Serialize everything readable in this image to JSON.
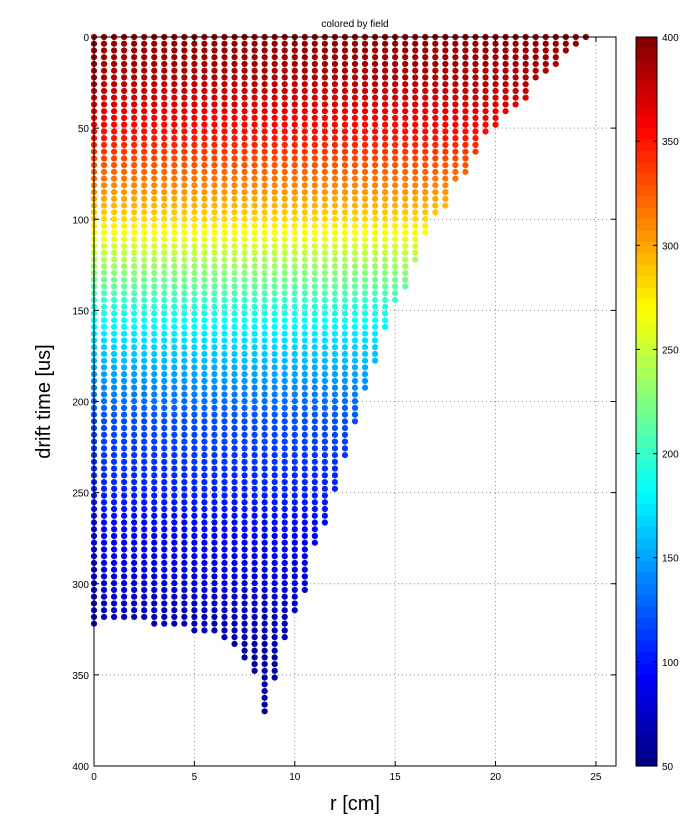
{
  "chart_data": {
    "type": "scatter",
    "title": "colored by field",
    "xlabel": "r [cm]",
    "ylabel": "drift time [us]",
    "xlim": [
      0,
      26
    ],
    "ylim": [
      0,
      400
    ],
    "y_reversed": true,
    "grid": true,
    "x_ticks": [
      0,
      5,
      10,
      15,
      20,
      25
    ],
    "y_ticks": [
      0,
      50,
      100,
      150,
      200,
      250,
      300,
      350,
      400
    ],
    "colorbar": {
      "colormap": "jet",
      "range": [
        50,
        400
      ],
      "ticks": [
        50,
        100,
        150,
        200,
        250,
        300,
        350,
        400
      ],
      "placement": "right"
    },
    "color_variable": "field",
    "columns": {
      "x": [
        0.0,
        0.5,
        1.0,
        1.5,
        2.0,
        2.5,
        3.0,
        3.5,
        4.0,
        4.5,
        5.0,
        5.5,
        6.0,
        6.5,
        7.0,
        7.5,
        8.0,
        8.5,
        9.0,
        9.5,
        10.0,
        10.5,
        11.0,
        11.5,
        12.0,
        12.5,
        13.0,
        13.5,
        14.0,
        14.5,
        15.0,
        15.5,
        16.0,
        16.5,
        17.0,
        17.5,
        18.0,
        18.5,
        19.0,
        19.5,
        20.0,
        20.5,
        21.0,
        21.5,
        22.0,
        22.5,
        23.0,
        23.5,
        24.0,
        24.5
      ],
      "y_max": [
        323,
        320,
        320,
        320,
        321,
        321,
        322,
        323,
        324,
        325,
        326,
        327,
        329,
        331,
        336,
        342,
        349,
        373,
        352,
        330,
        315,
        307,
        279,
        268,
        249,
        231,
        213,
        196,
        179,
        162,
        145,
        138,
        124,
        110,
        98,
        94,
        81,
        74,
        64,
        53,
        49,
        44,
        39,
        35,
        23,
        20,
        16,
        11,
        7,
        2
      ]
    },
    "points_per_column_spacing": 3.7,
    "color_field_gradient": {
      "y_points": [
        0,
        20,
        55,
        95,
        150,
        210,
        260,
        320,
        373
      ],
      "field_values": [
        395,
        385,
        350,
        290,
        190,
        120,
        100,
        70,
        55
      ]
    }
  }
}
